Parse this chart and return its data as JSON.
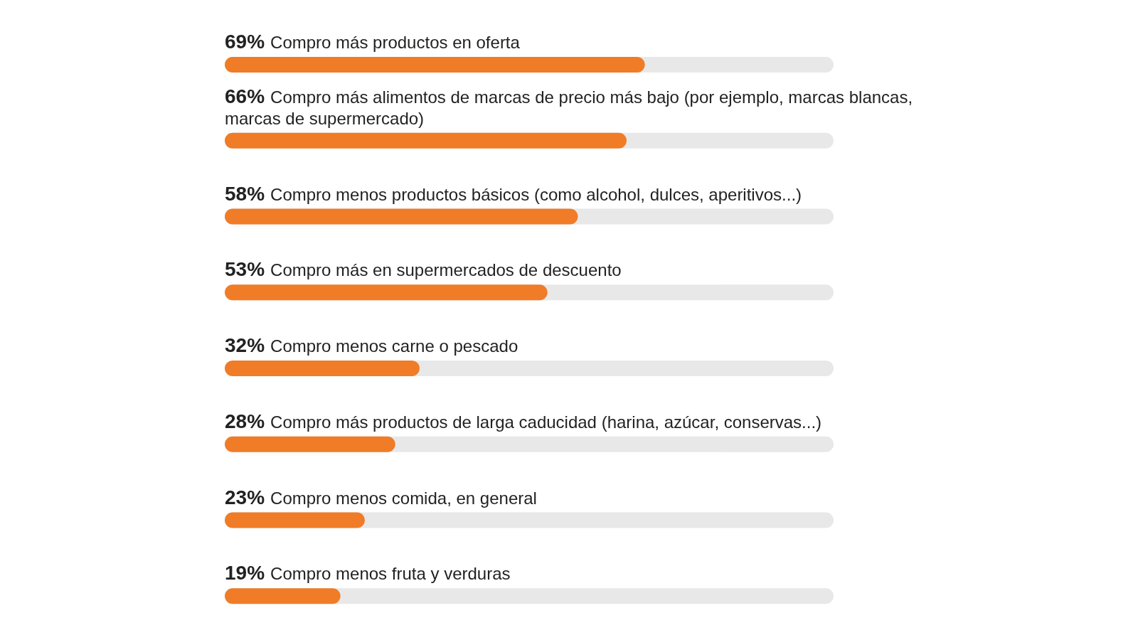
{
  "chart_data": {
    "type": "bar",
    "orientation": "horizontal",
    "categories": [
      "Compro más productos en oferta",
      "Compro más alimentos de marcas de precio más bajo (por ejemplo, marcas blancas, marcas de supermercado)",
      "Compro menos productos básicos (como alcohol, dulces, aperitivos...)",
      "Compro más en supermercados de descuento",
      "Compro menos carne o pescado",
      "Compro más productos de larga caducidad (harina, azúcar, conservas...)",
      "Compro menos comida, en general",
      "Compro menos fruta y verduras"
    ],
    "values": [
      69,
      66,
      58,
      53,
      32,
      28,
      23,
      19
    ],
    "value_labels": [
      "69%",
      "66%",
      "58%",
      "53%",
      "32%",
      "28%",
      "23%",
      "19%"
    ],
    "color": "#f07c28",
    "xlim": [
      0,
      100
    ],
    "tick_labels": false
  }
}
